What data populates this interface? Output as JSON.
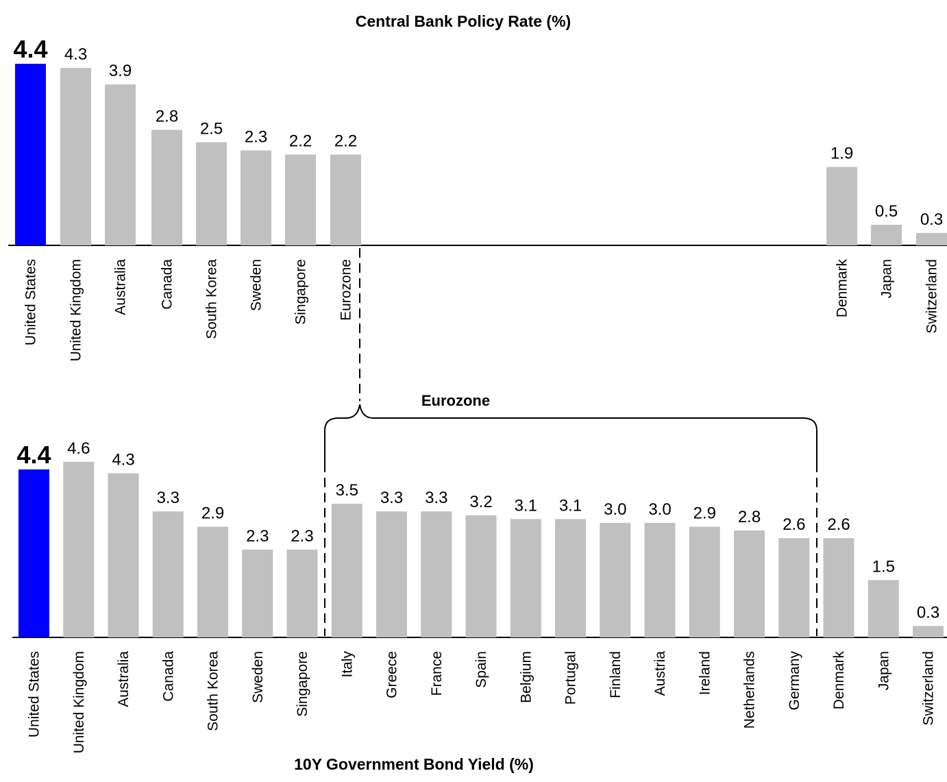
{
  "chart_data": [
    {
      "type": "bar",
      "title": "Central Bank Policy Rate (%)",
      "categories": [
        "United States",
        "United Kingdom",
        "Australia",
        "Canada",
        "South Korea",
        "Sweden",
        "Singapore",
        "Eurozone",
        "Denmark",
        "Japan",
        "Switzerland"
      ],
      "values": [
        4.4,
        4.3,
        3.9,
        2.8,
        2.5,
        2.3,
        2.2,
        2.2,
        1.9,
        0.5,
        0.3
      ],
      "value_labels": [
        "4.4",
        "4.3",
        "3.9",
        "2.8",
        "2.5",
        "2.3",
        "2.2",
        "2.2",
        "1.9",
        "0.5",
        "0.3"
      ],
      "highlight": "United States",
      "highlight_color": "#0000ff",
      "bar_color": "#c0c0c0",
      "ylim": [
        0,
        4.4
      ],
      "grid": false
    },
    {
      "type": "bar",
      "title": "10Y Government Bond Yield (%)",
      "categories": [
        "United States",
        "United Kingdom",
        "Australia",
        "Canada",
        "South Korea",
        "Sweden",
        "Singapore",
        "Italy",
        "Greece",
        "France",
        "Spain",
        "Belgium",
        "Portugal",
        "Finland",
        "Austria",
        "Ireland",
        "Netherlands",
        "Germany",
        "Denmark",
        "Japan",
        "Switzerland"
      ],
      "values": [
        4.4,
        4.6,
        4.3,
        3.3,
        2.9,
        2.3,
        2.3,
        3.5,
        3.3,
        3.3,
        3.2,
        3.1,
        3.1,
        3.0,
        3.0,
        2.9,
        2.8,
        2.6,
        2.6,
        1.5,
        0.3
      ],
      "value_labels": [
        "4.4",
        "4.6",
        "4.3",
        "3.3",
        "2.9",
        "2.3",
        "2.3",
        "3.5",
        "3.3",
        "3.3",
        "3.2",
        "3.1",
        "3.1",
        "3.0",
        "3.0",
        "2.9",
        "2.8",
        "2.6",
        "2.6",
        "1.5",
        "0.3"
      ],
      "highlight": "United States",
      "highlight_color": "#0000ff",
      "bar_color": "#c0c0c0",
      "ylim": [
        0,
        4.6
      ],
      "grid": false,
      "group": {
        "label": "Eurozone",
        "members": [
          "Italy",
          "Greece",
          "France",
          "Spain",
          "Belgium",
          "Portugal",
          "Finland",
          "Austria",
          "Ireland",
          "Netherlands",
          "Germany"
        ]
      }
    }
  ]
}
